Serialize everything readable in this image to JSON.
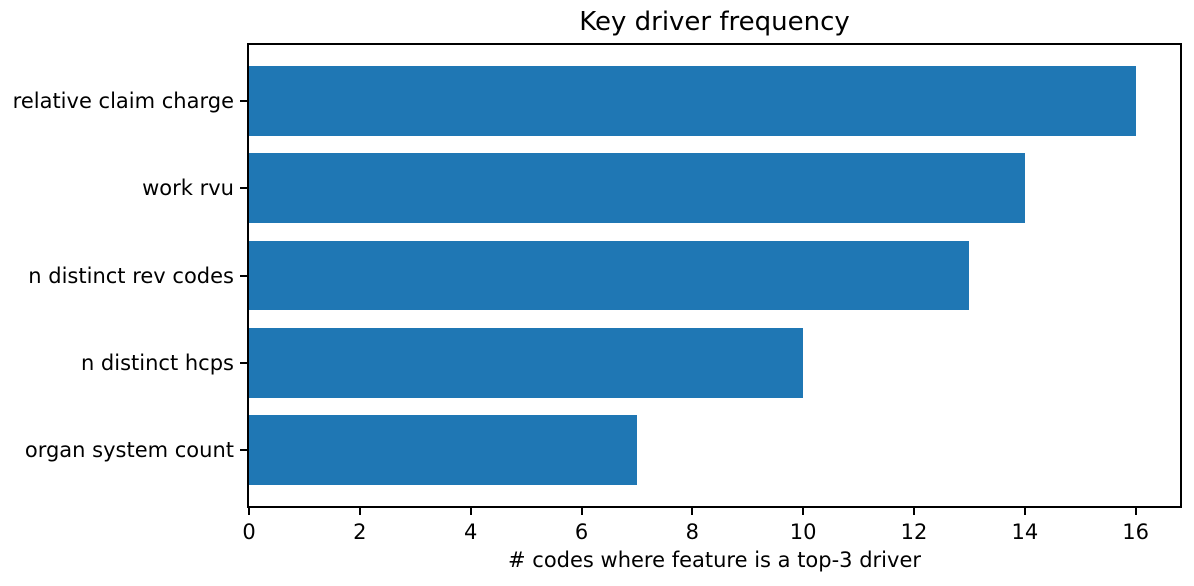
{
  "figure": {
    "background_color": "#ffffff",
    "text_color": "#000000"
  },
  "chart_data": {
    "type": "bar",
    "orientation": "horizontal",
    "title": "Key driver frequency",
    "categories": [
      "relative claim charge",
      "work rvu",
      "n distinct rev codes",
      "n distinct hcps",
      "organ system count"
    ],
    "values": [
      16,
      14,
      13,
      10,
      7
    ],
    "xlabel": "# codes where feature is a top-3 driver",
    "ylabel": "",
    "xticks": [
      0,
      2,
      4,
      6,
      8,
      10,
      12,
      14,
      16
    ],
    "xlim": [
      0,
      16.8
    ],
    "bar_color": "#1f77b4",
    "bar_height_fraction": 0.8,
    "grid": false,
    "legend": "none",
    "frame": "all-spines"
  }
}
